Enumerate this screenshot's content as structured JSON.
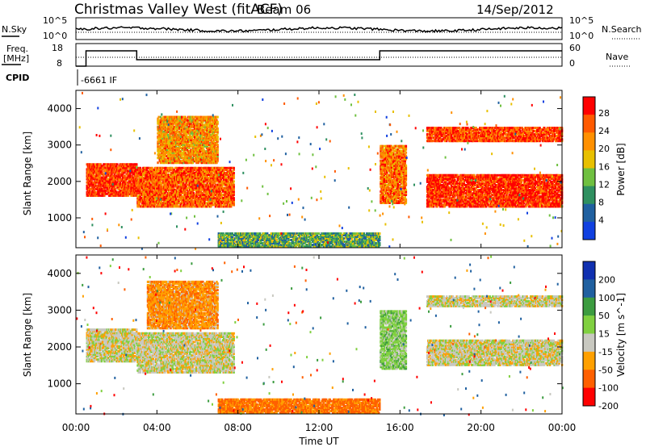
{
  "header": {
    "title": "Christmas Valley West (fitACF)",
    "beam": "Beam 06",
    "date": "14/Sep/2012"
  },
  "top_strip": {
    "left_label": "N.Sky",
    "left_ticks": [
      "10^5",
      "10^0"
    ],
    "right_ticks": [
      "10^5",
      "10^0"
    ],
    "right_label": "N.Search"
  },
  "freq_strip": {
    "left_label_line1": "Freq.",
    "left_label_line2": "[MHz]",
    "left_ticks": [
      "18",
      "8"
    ],
    "right_ticks": [
      "60",
      "0"
    ],
    "right_label": "Nave"
  },
  "cpid": {
    "label": "CPID",
    "value": "-6661 IF"
  },
  "chart_data": [
    {
      "type": "heatmap",
      "name": "power",
      "ylabel": "Slant Range [km]",
      "yticks": [
        "4000",
        "3000",
        "2000",
        "1000"
      ],
      "ylim": [
        180,
        4500
      ],
      "colorbar_label": "Power [dB]",
      "colorbar_ticks": [
        "28",
        "24",
        "20",
        "16",
        "12",
        "8",
        "4"
      ],
      "colors": [
        "#ff0000",
        "#ff5a00",
        "#ff9000",
        "#e8c000",
        "#6fc040",
        "#2f9060",
        "#2060a0",
        "#1040e0"
      ],
      "bands": [
        {
          "t0": 0.5,
          "t1": 3.0,
          "r0": 1600,
          "r1": 2500,
          "v": 26
        },
        {
          "t0": 3.0,
          "t1": 7.8,
          "r0": 1300,
          "r1": 2400,
          "v": 24
        },
        {
          "t0": 4.0,
          "t1": 7.0,
          "r0": 2500,
          "r1": 3800,
          "v": 20
        },
        {
          "t0": 7.0,
          "t1": 15.0,
          "r0": 200,
          "r1": 600,
          "v": 10
        },
        {
          "t0": 15.0,
          "t1": 16.3,
          "r0": 1400,
          "r1": 3000,
          "v": 22
        },
        {
          "t0": 17.3,
          "t1": 24.0,
          "r0": 1300,
          "r1": 2200,
          "v": 27
        },
        {
          "t0": 17.3,
          "t1": 24.0,
          "r0": 3100,
          "r1": 3500,
          "v": 25
        }
      ]
    },
    {
      "type": "heatmap",
      "name": "velocity",
      "ylabel": "Slant Range [km]",
      "yticks": [
        "4000",
        "3000",
        "2000",
        "1000"
      ],
      "ylim": [
        180,
        4500
      ],
      "colorbar_label": "Velocity [m s^-1]",
      "colorbar_ticks": [
        "200",
        "100",
        "50",
        "15",
        "-15",
        "-50",
        "-100",
        "-200"
      ],
      "colors": [
        "#1030b0",
        "#2060a0",
        "#3c9c40",
        "#80d040",
        "#c8c8c0",
        "#ffa000",
        "#ff6000",
        "#ff0000"
      ],
      "bands": [
        {
          "t0": 0.5,
          "t1": 3.0,
          "r0": 1600,
          "r1": 2500,
          "v": 0
        },
        {
          "t0": 3.0,
          "t1": 7.8,
          "r0": 1300,
          "r1": 2400,
          "v": 0
        },
        {
          "t0": 3.5,
          "t1": 7.0,
          "r0": 2500,
          "r1": 3800,
          "v": -40
        },
        {
          "t0": 7.0,
          "t1": 15.0,
          "r0": 200,
          "r1": 600,
          "v": -60
        },
        {
          "t0": 15.0,
          "t1": 16.3,
          "r0": 1400,
          "r1": 3000,
          "v": 30
        },
        {
          "t0": 17.3,
          "t1": 24.0,
          "r0": 1500,
          "r1": 2200,
          "v": 0
        },
        {
          "t0": 17.3,
          "t1": 24.0,
          "r0": 3100,
          "r1": 3400,
          "v": 0
        }
      ]
    }
  ],
  "x_axis": {
    "ticks": [
      "00:00",
      "04:00",
      "08:00",
      "12:00",
      "16:00",
      "20:00",
      "00:00"
    ],
    "label": "Time UT"
  }
}
